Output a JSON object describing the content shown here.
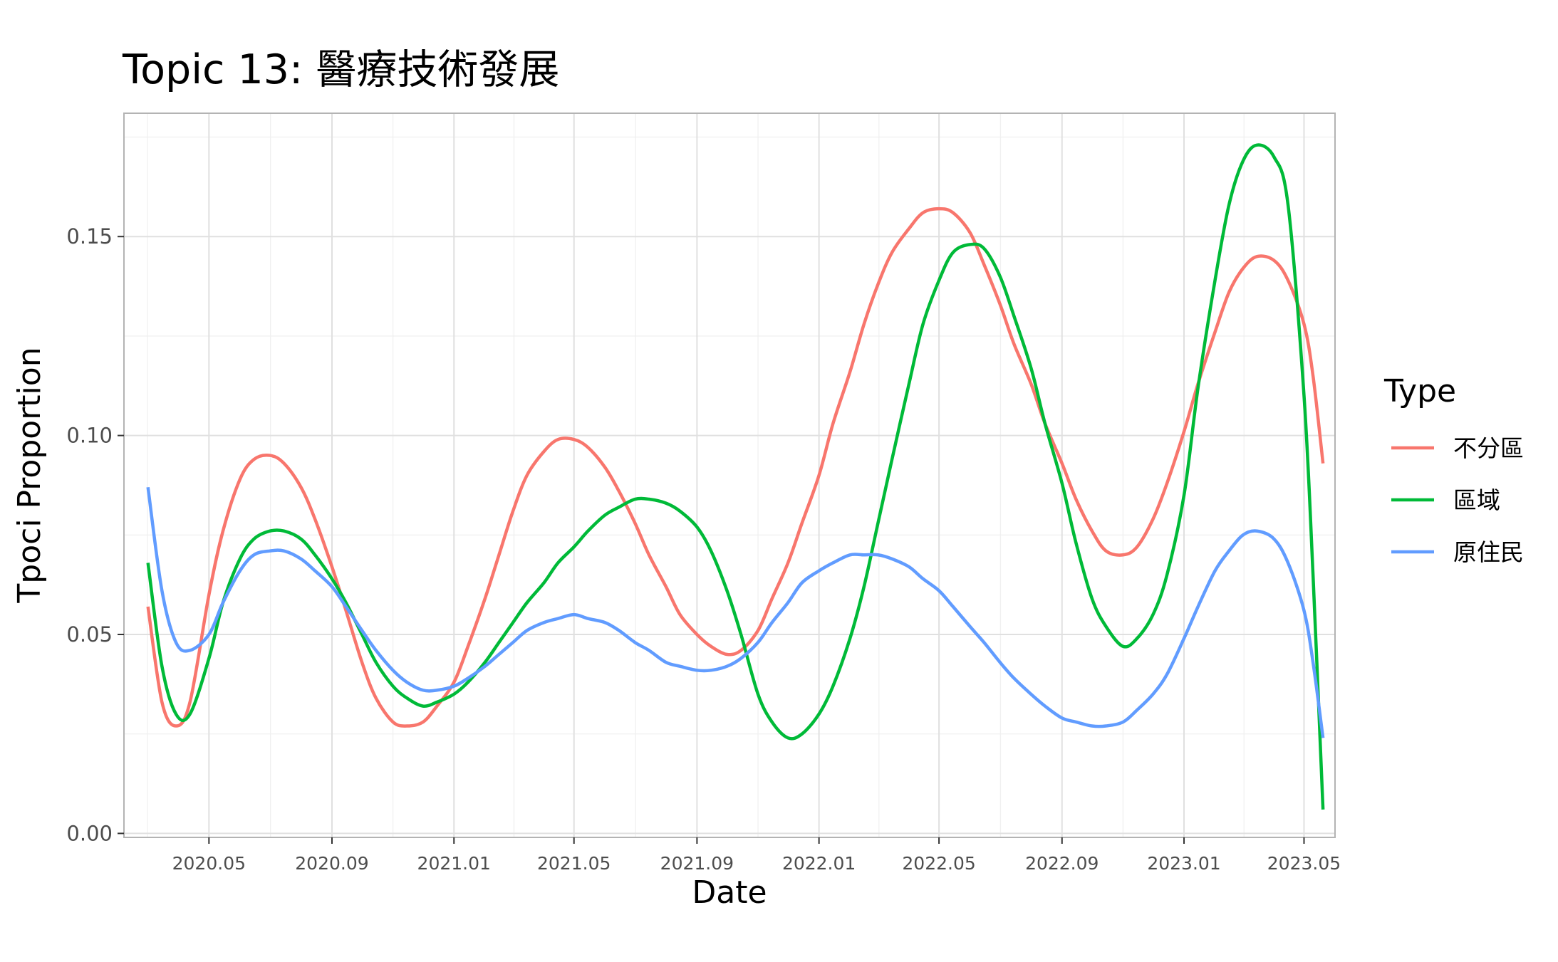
{
  "chart_data": {
    "type": "line",
    "title": "Topic 13: 醫療技術發展",
    "xlabel": "Date",
    "ylabel": "Tpoci Proportion",
    "ylim": [
      -0.001,
      0.181
    ],
    "xlim": [
      "2020-02-06",
      "2023-06-01"
    ],
    "x_ticks": [
      "2020-05-01",
      "2020-09-01",
      "2021-01-01",
      "2021-05-01",
      "2021-09-01",
      "2022-01-01",
      "2022-05-01",
      "2022-09-01",
      "2023-01-01",
      "2023-05-01"
    ],
    "x_tick_labels": [
      "2020.05",
      "2020.09",
      "2021.01",
      "2021.05",
      "2021.09",
      "2022.01",
      "2022.05",
      "2022.09",
      "2023.01",
      "2023.05"
    ],
    "y_ticks": [
      0.0,
      0.05,
      0.1,
      0.15
    ],
    "y_tick_labels": [
      "0.00",
      "0.05",
      "0.10",
      "0.15"
    ],
    "grid": true,
    "legend": {
      "title": "Type",
      "position": "right"
    },
    "series": [
      {
        "name": "不分區",
        "color": "#F8766D",
        "points": [
          [
            "2020-03-01",
            0.057
          ],
          [
            "2020-03-15",
            0.033
          ],
          [
            "2020-03-29",
            0.027
          ],
          [
            "2020-04-12",
            0.033
          ],
          [
            "2020-05-01",
            0.06
          ],
          [
            "2020-05-15",
            0.076
          ],
          [
            "2020-06-01",
            0.089
          ],
          [
            "2020-06-15",
            0.094
          ],
          [
            "2020-07-01",
            0.095
          ],
          [
            "2020-07-15",
            0.093
          ],
          [
            "2020-08-01",
            0.087
          ],
          [
            "2020-08-15",
            0.079
          ],
          [
            "2020-09-01",
            0.067
          ],
          [
            "2020-09-15",
            0.056
          ],
          [
            "2020-10-01",
            0.043
          ],
          [
            "2020-10-15",
            0.034
          ],
          [
            "2020-11-01",
            0.028
          ],
          [
            "2020-11-15",
            0.027
          ],
          [
            "2020-12-01",
            0.028
          ],
          [
            "2020-12-15",
            0.032
          ],
          [
            "2021-01-01",
            0.038
          ],
          [
            "2021-01-15",
            0.047
          ],
          [
            "2021-02-01",
            0.059
          ],
          [
            "2021-02-15",
            0.07
          ],
          [
            "2021-03-01",
            0.081
          ],
          [
            "2021-03-15",
            0.09
          ],
          [
            "2021-04-01",
            0.096
          ],
          [
            "2021-04-15",
            0.099
          ],
          [
            "2021-05-01",
            0.099
          ],
          [
            "2021-05-15",
            0.097
          ],
          [
            "2021-06-01",
            0.092
          ],
          [
            "2021-06-15",
            0.086
          ],
          [
            "2021-07-01",
            0.078
          ],
          [
            "2021-07-15",
            0.07
          ],
          [
            "2021-08-01",
            0.062
          ],
          [
            "2021-08-15",
            0.055
          ],
          [
            "2021-09-01",
            0.05
          ],
          [
            "2021-09-15",
            0.047
          ],
          [
            "2021-10-01",
            0.045
          ],
          [
            "2021-10-15",
            0.046
          ],
          [
            "2021-11-01",
            0.051
          ],
          [
            "2021-11-15",
            0.059
          ],
          [
            "2021-12-01",
            0.068
          ],
          [
            "2021-12-15",
            0.078
          ],
          [
            "2022-01-01",
            0.09
          ],
          [
            "2022-01-15",
            0.103
          ],
          [
            "2022-02-01",
            0.116
          ],
          [
            "2022-02-15",
            0.128
          ],
          [
            "2022-03-01",
            0.138
          ],
          [
            "2022-03-15",
            0.146
          ],
          [
            "2022-04-01",
            0.152
          ],
          [
            "2022-04-15",
            0.156
          ],
          [
            "2022-05-01",
            0.157
          ],
          [
            "2022-05-15",
            0.156
          ],
          [
            "2022-06-01",
            0.151
          ],
          [
            "2022-06-15",
            0.143
          ],
          [
            "2022-07-01",
            0.133
          ],
          [
            "2022-07-15",
            0.123
          ],
          [
            "2022-08-01",
            0.113
          ],
          [
            "2022-08-15",
            0.103
          ],
          [
            "2022-09-01",
            0.093
          ],
          [
            "2022-09-15",
            0.084
          ],
          [
            "2022-10-01",
            0.076
          ],
          [
            "2022-10-15",
            0.071
          ],
          [
            "2022-11-01",
            0.07
          ],
          [
            "2022-11-15",
            0.072
          ],
          [
            "2022-12-01",
            0.079
          ],
          [
            "2022-12-15",
            0.088
          ],
          [
            "2023-01-01",
            0.101
          ],
          [
            "2023-01-15",
            0.113
          ],
          [
            "2023-02-01",
            0.126
          ],
          [
            "2023-02-15",
            0.136
          ],
          [
            "2023-03-01",
            0.142
          ],
          [
            "2023-03-15",
            0.145
          ],
          [
            "2023-04-01",
            0.144
          ],
          [
            "2023-04-15",
            0.139
          ],
          [
            "2023-05-01",
            0.128
          ],
          [
            "2023-05-10",
            0.115
          ],
          [
            "2023-05-20",
            0.093
          ]
        ]
      },
      {
        "name": "區域",
        "color": "#00BA38",
        "points": [
          [
            "2020-03-01",
            0.068
          ],
          [
            "2020-03-15",
            0.042
          ],
          [
            "2020-03-29",
            0.03
          ],
          [
            "2020-04-12",
            0.03
          ],
          [
            "2020-05-01",
            0.044
          ],
          [
            "2020-05-15",
            0.058
          ],
          [
            "2020-06-01",
            0.069
          ],
          [
            "2020-06-15",
            0.074
          ],
          [
            "2020-07-01",
            0.076
          ],
          [
            "2020-07-15",
            0.076
          ],
          [
            "2020-08-01",
            0.074
          ],
          [
            "2020-08-15",
            0.07
          ],
          [
            "2020-09-01",
            0.064
          ],
          [
            "2020-09-15",
            0.058
          ],
          [
            "2020-10-01",
            0.05
          ],
          [
            "2020-10-15",
            0.043
          ],
          [
            "2020-11-01",
            0.037
          ],
          [
            "2020-11-15",
            0.034
          ],
          [
            "2020-12-01",
            0.032
          ],
          [
            "2020-12-15",
            0.033
          ],
          [
            "2021-01-01",
            0.035
          ],
          [
            "2021-01-15",
            0.038
          ],
          [
            "2021-02-01",
            0.043
          ],
          [
            "2021-02-15",
            0.048
          ],
          [
            "2021-03-01",
            0.053
          ],
          [
            "2021-03-15",
            0.058
          ],
          [
            "2021-04-01",
            0.063
          ],
          [
            "2021-04-15",
            0.068
          ],
          [
            "2021-05-01",
            0.072
          ],
          [
            "2021-05-15",
            0.076
          ],
          [
            "2021-06-01",
            0.08
          ],
          [
            "2021-06-15",
            0.082
          ],
          [
            "2021-07-01",
            0.084
          ],
          [
            "2021-07-15",
            0.084
          ],
          [
            "2021-08-01",
            0.083
          ],
          [
            "2021-08-15",
            0.081
          ],
          [
            "2021-09-01",
            0.077
          ],
          [
            "2021-09-15",
            0.071
          ],
          [
            "2021-10-01",
            0.061
          ],
          [
            "2021-10-15",
            0.05
          ],
          [
            "2021-11-01",
            0.035
          ],
          [
            "2021-11-15",
            0.028
          ],
          [
            "2021-12-01",
            0.024
          ],
          [
            "2021-12-15",
            0.025
          ],
          [
            "2022-01-01",
            0.03
          ],
          [
            "2022-01-15",
            0.037
          ],
          [
            "2022-02-01",
            0.049
          ],
          [
            "2022-02-15",
            0.062
          ],
          [
            "2022-03-01",
            0.078
          ],
          [
            "2022-03-15",
            0.094
          ],
          [
            "2022-04-01",
            0.113
          ],
          [
            "2022-04-15",
            0.128
          ],
          [
            "2022-05-01",
            0.139
          ],
          [
            "2022-05-15",
            0.146
          ],
          [
            "2022-06-01",
            0.148
          ],
          [
            "2022-06-15",
            0.147
          ],
          [
            "2022-07-01",
            0.14
          ],
          [
            "2022-07-15",
            0.13
          ],
          [
            "2022-08-01",
            0.117
          ],
          [
            "2022-08-15",
            0.103
          ],
          [
            "2022-09-01",
            0.088
          ],
          [
            "2022-09-15",
            0.073
          ],
          [
            "2022-10-01",
            0.059
          ],
          [
            "2022-10-15",
            0.052
          ],
          [
            "2022-11-01",
            0.047
          ],
          [
            "2022-11-15",
            0.049
          ],
          [
            "2022-12-01",
            0.055
          ],
          [
            "2022-12-15",
            0.065
          ],
          [
            "2023-01-01",
            0.085
          ],
          [
            "2023-01-15",
            0.112
          ],
          [
            "2023-02-01",
            0.139
          ],
          [
            "2023-02-15",
            0.158
          ],
          [
            "2023-03-01",
            0.169
          ],
          [
            "2023-03-15",
            0.173
          ],
          [
            "2023-04-01",
            0.17
          ],
          [
            "2023-04-15",
            0.158
          ],
          [
            "2023-05-01",
            0.11
          ],
          [
            "2023-05-10",
            0.065
          ],
          [
            "2023-05-20",
            0.006
          ]
        ]
      },
      {
        "name": "原住民",
        "color": "#619CFF",
        "points": [
          [
            "2020-03-01",
            0.087
          ],
          [
            "2020-03-15",
            0.061
          ],
          [
            "2020-03-29",
            0.048
          ],
          [
            "2020-04-12",
            0.046
          ],
          [
            "2020-05-01",
            0.05
          ],
          [
            "2020-05-15",
            0.058
          ],
          [
            "2020-06-01",
            0.066
          ],
          [
            "2020-06-15",
            0.07
          ],
          [
            "2020-07-01",
            0.071
          ],
          [
            "2020-07-15",
            0.071
          ],
          [
            "2020-08-01",
            0.069
          ],
          [
            "2020-08-15",
            0.066
          ],
          [
            "2020-09-01",
            0.062
          ],
          [
            "2020-09-15",
            0.057
          ],
          [
            "2020-10-01",
            0.051
          ],
          [
            "2020-10-15",
            0.046
          ],
          [
            "2020-11-01",
            0.041
          ],
          [
            "2020-11-15",
            0.038
          ],
          [
            "2020-12-01",
            0.036
          ],
          [
            "2020-12-15",
            0.036
          ],
          [
            "2021-01-01",
            0.037
          ],
          [
            "2021-01-15",
            0.039
          ],
          [
            "2021-02-01",
            0.042
          ],
          [
            "2021-02-15",
            0.045
          ],
          [
            "2021-03-01",
            0.048
          ],
          [
            "2021-03-15",
            0.051
          ],
          [
            "2021-04-01",
            0.053
          ],
          [
            "2021-04-15",
            0.054
          ],
          [
            "2021-05-01",
            0.055
          ],
          [
            "2021-05-15",
            0.054
          ],
          [
            "2021-06-01",
            0.053
          ],
          [
            "2021-06-15",
            0.051
          ],
          [
            "2021-07-01",
            0.048
          ],
          [
            "2021-07-15",
            0.046
          ],
          [
            "2021-08-01",
            0.043
          ],
          [
            "2021-08-15",
            0.042
          ],
          [
            "2021-09-01",
            0.041
          ],
          [
            "2021-09-15",
            0.041
          ],
          [
            "2021-10-01",
            0.042
          ],
          [
            "2021-10-15",
            0.044
          ],
          [
            "2021-11-01",
            0.048
          ],
          [
            "2021-11-15",
            0.053
          ],
          [
            "2021-12-01",
            0.058
          ],
          [
            "2021-12-15",
            0.063
          ],
          [
            "2022-01-01",
            0.066
          ],
          [
            "2022-01-15",
            0.068
          ],
          [
            "2022-02-01",
            0.07
          ],
          [
            "2022-02-15",
            0.07
          ],
          [
            "2022-03-01",
            0.07
          ],
          [
            "2022-03-15",
            0.069
          ],
          [
            "2022-04-01",
            0.067
          ],
          [
            "2022-04-15",
            0.064
          ],
          [
            "2022-05-01",
            0.061
          ],
          [
            "2022-05-15",
            0.057
          ],
          [
            "2022-06-01",
            0.052
          ],
          [
            "2022-06-15",
            0.048
          ],
          [
            "2022-07-01",
            0.043
          ],
          [
            "2022-07-15",
            0.039
          ],
          [
            "2022-08-01",
            0.035
          ],
          [
            "2022-08-15",
            0.032
          ],
          [
            "2022-09-01",
            0.029
          ],
          [
            "2022-09-15",
            0.028
          ],
          [
            "2022-10-01",
            0.027
          ],
          [
            "2022-10-15",
            0.027
          ],
          [
            "2022-11-01",
            0.028
          ],
          [
            "2022-11-15",
            0.031
          ],
          [
            "2022-12-01",
            0.035
          ],
          [
            "2022-12-15",
            0.04
          ],
          [
            "2023-01-01",
            0.049
          ],
          [
            "2023-01-15",
            0.057
          ],
          [
            "2023-02-01",
            0.066
          ],
          [
            "2023-02-15",
            0.071
          ],
          [
            "2023-03-01",
            0.075
          ],
          [
            "2023-03-15",
            0.076
          ],
          [
            "2023-04-01",
            0.074
          ],
          [
            "2023-04-15",
            0.068
          ],
          [
            "2023-05-01",
            0.056
          ],
          [
            "2023-05-10",
            0.043
          ],
          [
            "2023-05-20",
            0.024
          ]
        ]
      }
    ]
  }
}
